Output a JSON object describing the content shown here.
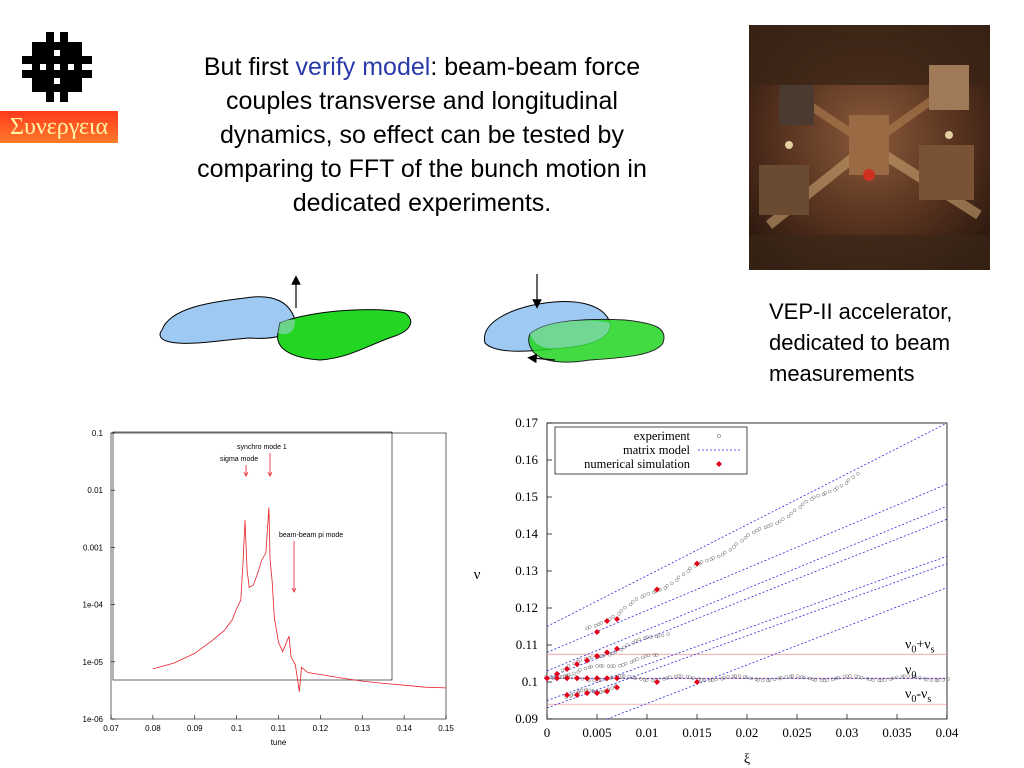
{
  "logo": {
    "icon": "fermilab-logo-icon",
    "greek_label": "Συνεργεια"
  },
  "headline": {
    "before": "But first ",
    "highlight": "verify model",
    "after": ": beam-beam force couples transverse and longitudinal dynamics, so effect can be tested by comparing to FFT of the bunch motion in dedicated experiments."
  },
  "photo": {
    "description_icon": "accelerator-photo"
  },
  "caption": {
    "lines": [
      "VEP-II accelerator,",
      "dedicated to beam",
      "measurements"
    ]
  },
  "colors": {
    "highlight": "#2a3aa8",
    "beam_blue": "#9ec9f2",
    "beam_green": "#22d622",
    "fft_line": "#e8202a",
    "sim_marker": "#e4001a",
    "model_line": "#2a2ae0"
  },
  "chart_data": [
    {
      "type": "line",
      "title": "",
      "xlabel": "tune",
      "ylabel": "",
      "x_ticks": [
        "0.07",
        "0.08",
        "0.09",
        "0.1",
        "0.11",
        "0.12",
        "0.13",
        "0.14",
        "0.15"
      ],
      "y_ticks": [
        "0.1",
        "0.01",
        "0.001",
        "1e-04",
        "1e-05",
        "1e-06"
      ],
      "xlim": [
        0.07,
        0.15
      ],
      "ylim": [
        1e-06,
        0.1
      ],
      "log_y": true,
      "annotations": [
        "synchro mode 1",
        "sigma mode",
        "beam-beam pi mode"
      ],
      "series": [
        {
          "values": [
            [
              0.08,
              7.5e-06
            ],
            [
              0.085,
              9.5e-06
            ],
            [
              0.09,
              1.4e-05
            ],
            [
              0.094,
              2.3e-05
            ],
            [
              0.097,
              3.5e-05
            ],
            [
              0.099,
              5.5e-05
            ],
            [
              0.1,
              8.5e-05
            ],
            [
              0.101,
              0.00012
            ],
            [
              0.1015,
              0.0005
            ],
            [
              0.102,
              0.003
            ],
            [
              0.1025,
              0.0004
            ],
            [
              0.103,
              0.0002
            ],
            [
              0.104,
              0.00022
            ],
            [
              0.105,
              0.00035
            ],
            [
              0.106,
              0.0006
            ],
            [
              0.107,
              0.0008
            ],
            [
              0.1077,
              0.005
            ],
            [
              0.108,
              0.0006
            ],
            [
              0.1085,
              0.00025
            ],
            [
              0.109,
              6e-05
            ],
            [
              0.11,
              2.2e-05
            ],
            [
              0.111,
              1.5e-05
            ],
            [
              0.1125,
              2.8e-05
            ],
            [
              0.113,
              1.2e-05
            ],
            [
              0.114,
              9e-06
            ],
            [
              0.115,
              3e-06
            ],
            [
              0.1155,
              8e-06
            ],
            [
              0.117,
              6.5e-06
            ],
            [
              0.12,
              6e-06
            ],
            [
              0.125,
              5.2e-06
            ],
            [
              0.13,
              4.6e-06
            ],
            [
              0.135,
              4.2e-06
            ],
            [
              0.14,
              3.9e-06
            ],
            [
              0.145,
              3.6e-06
            ],
            [
              0.15,
              3.5e-06
            ]
          ]
        }
      ]
    },
    {
      "type": "scatter",
      "title": "",
      "xlabel": "ξ",
      "ylabel": "ν",
      "x_ticks": [
        "0",
        "0.005",
        "0.01",
        "0.015",
        "0.02",
        "0.025",
        "0.03",
        "0.035",
        "0.04"
      ],
      "y_ticks": [
        "0.09",
        "0.1",
        "0.11",
        "0.12",
        "0.13",
        "0.14",
        "0.15",
        "0.16",
        "0.17"
      ],
      "xlim": [
        0,
        0.04
      ],
      "ylim": [
        0.09,
        0.17
      ],
      "legend": {
        "position": "top-left",
        "entries": [
          "experiment",
          "matrix model",
          "numerical simulation"
        ]
      },
      "right_labels": [
        {
          "base": "ν",
          "sub": "0",
          "rest": "+ν",
          "sub2": "s",
          "y": 0.1075
        },
        {
          "base": "ν",
          "sub": "0",
          "rest": "",
          "sub2": "",
          "y": 0.1005
        },
        {
          "base": "ν",
          "sub": "0",
          "rest": "-ν",
          "sub2": "s",
          "y": 0.094
        }
      ],
      "reference_lines": [
        0.1075,
        0.101,
        0.094
      ],
      "matrix_model_lines": [
        [
          [
            0,
            0.115
          ],
          [
            0.04,
            0.17
          ]
        ],
        [
          [
            0,
            0.108
          ],
          [
            0.04,
            0.1535
          ]
        ],
        [
          [
            0,
            0.103
          ],
          [
            0.04,
            0.1475
          ]
        ],
        [
          [
            0,
            0.101
          ],
          [
            0.04,
            0.144
          ]
        ],
        [
          [
            0,
            0.095
          ],
          [
            0.04,
            0.134
          ]
        ],
        [
          [
            0,
            0.093
          ],
          [
            0.04,
            0.132
          ]
        ],
        [
          [
            0,
            0.101
          ],
          [
            0.04,
            0.101
          ]
        ],
        [
          [
            0.006,
            0.09
          ],
          [
            0.04,
            0.1255
          ]
        ]
      ],
      "series": [
        {
          "name": "experiment",
          "branches": [
            [
              [
                0.0005,
                0.101
              ],
              [
                0.04,
                0.101
              ]
            ],
            [
              [
                0.0,
                0.1012
              ],
              [
                0.011,
                0.107
              ]
            ],
            [
              [
                0.0015,
                0.1035
              ],
              [
                0.012,
                0.1135
              ]
            ],
            [
              [
                0.004,
                0.114
              ],
              [
                0.031,
                0.156
              ]
            ],
            [
              [
                0.002,
                0.0965
              ],
              [
                0.007,
                0.0985
              ]
            ]
          ]
        },
        {
          "name": "numerical simulation",
          "values": [
            [
              0.0,
              0.101
            ],
            [
              0.001,
              0.101
            ],
            [
              0.002,
              0.101
            ],
            [
              0.003,
              0.101
            ],
            [
              0.004,
              0.101
            ],
            [
              0.005,
              0.101
            ],
            [
              0.006,
              0.101
            ],
            [
              0.007,
              0.101
            ],
            [
              0.011,
              0.1
            ],
            [
              0.015,
              0.1
            ],
            [
              0.0,
              0.101
            ],
            [
              0.001,
              0.1022
            ],
            [
              0.002,
              0.1035
            ],
            [
              0.003,
              0.1048
            ],
            [
              0.004,
              0.1058
            ],
            [
              0.005,
              0.107
            ],
            [
              0.006,
              0.108
            ],
            [
              0.007,
              0.109
            ],
            [
              0.005,
              0.1135
            ],
            [
              0.006,
              0.1165
            ],
            [
              0.007,
              0.117
            ],
            [
              0.011,
              0.125
            ],
            [
              0.015,
              0.132
            ],
            [
              0.002,
              0.0965
            ],
            [
              0.003,
              0.0965
            ],
            [
              0.004,
              0.097
            ],
            [
              0.005,
              0.097
            ],
            [
              0.006,
              0.0975
            ],
            [
              0.007,
              0.0985
            ]
          ]
        }
      ]
    }
  ]
}
